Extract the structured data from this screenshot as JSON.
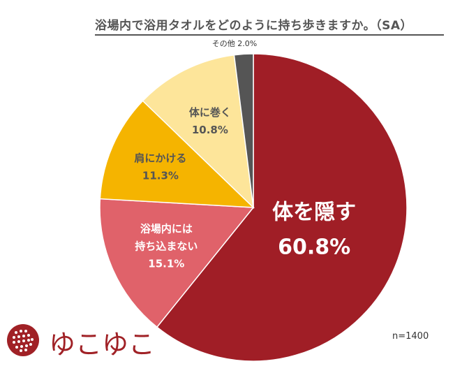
{
  "chart_data": {
    "type": "pie",
    "title": "浴場内で浴用タオルをどのように持ち歩きますか。（SA）",
    "unit": "%",
    "start": "12 o'clock",
    "direction": "clockwise",
    "slices": [
      {
        "label_lines": [
          "体を隠す"
        ],
        "value": 60.8,
        "value_text": "60.8%",
        "color": "#a01e26",
        "text_color": "#ffffff"
      },
      {
        "label_lines": [
          "浴場内には",
          "持ち込まない"
        ],
        "value": 15.1,
        "value_text": "15.1%",
        "color": "#e0626a",
        "text_color": "#ffffff"
      },
      {
        "label_lines": [
          "肩にかける"
        ],
        "value": 11.3,
        "value_text": "11.3%",
        "color": "#f5b400",
        "text_color": "#555555"
      },
      {
        "label_lines": [
          "体に巻く"
        ],
        "value": 10.8,
        "value_text": "10.8%",
        "color": "#fde59a",
        "text_color": "#555555"
      },
      {
        "label_lines": [
          "その他"
        ],
        "value": 2.0,
        "value_text": "2.0%",
        "color": "#555555",
        "text_color": "#333333"
      }
    ],
    "note": "n=1400"
  },
  "brand": {
    "logo_text": "ゆこゆこ",
    "logo_color": "#a02126"
  }
}
